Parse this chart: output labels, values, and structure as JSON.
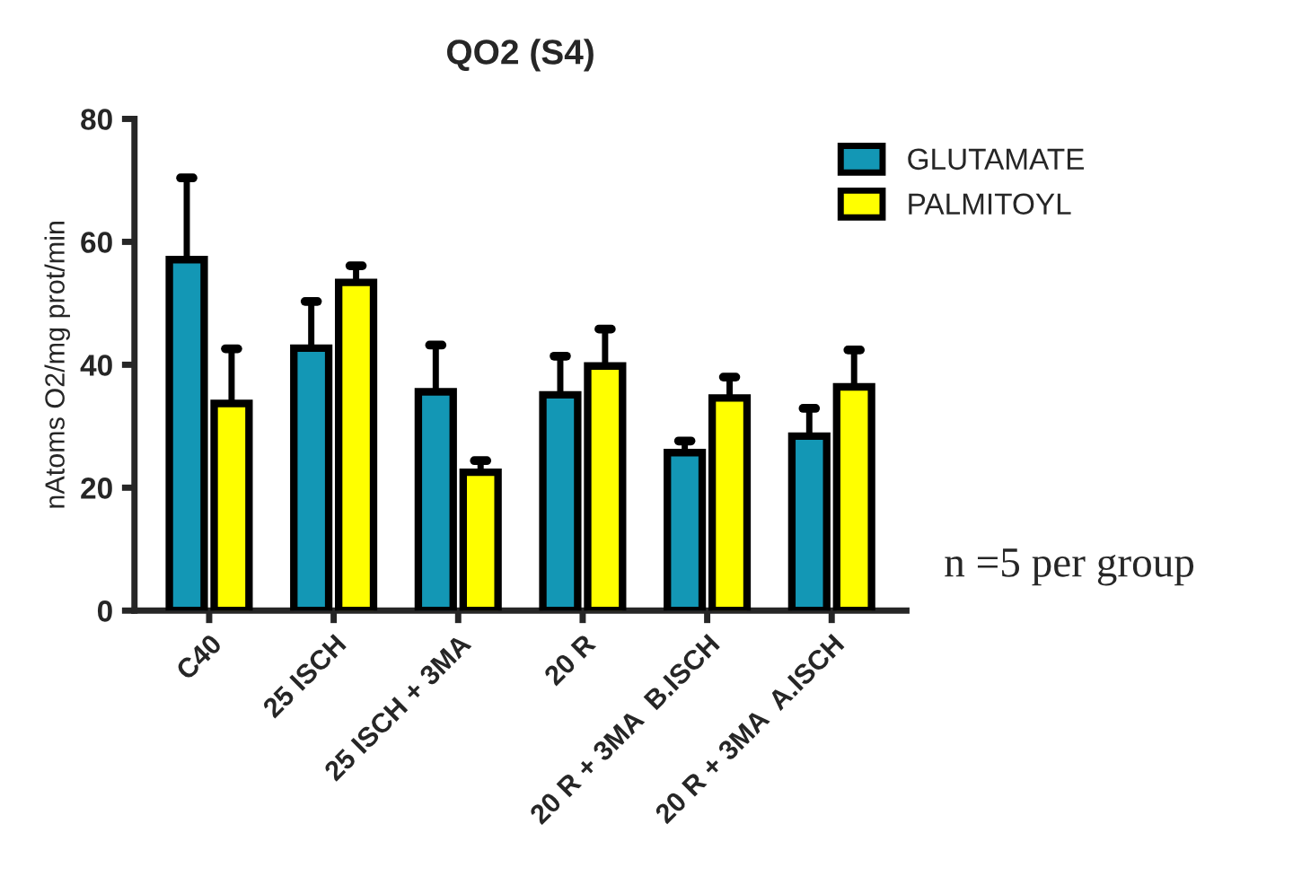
{
  "chart_data": {
    "type": "bar",
    "title": "QO2 (S4)",
    "ylabel": "nAtoms O2/mg prot/min",
    "categories": [
      "C40",
      "25 ISCH",
      "25 ISCH + 3MA",
      "20 R",
      "20 R + 3MA  B.ISCH",
      "20 R + 3MA  A.ISCH"
    ],
    "series": [
      {
        "name": "GLUTAMATE",
        "color": "#1397b5",
        "values": [
          57.1,
          42.7,
          35.6,
          35.1,
          25.7,
          28.4
        ],
        "errors": [
          [
            57.1,
            70.4
          ],
          [
            42.7,
            50.3
          ],
          [
            35.6,
            43.2
          ],
          [
            35.1,
            41.4
          ],
          [
            25.7,
            27.6
          ],
          [
            28.4,
            32.9
          ]
        ]
      },
      {
        "name": "PALMITOYL",
        "color": "#ffff00",
        "values": [
          33.7,
          53.4,
          22.5,
          39.8,
          34.6,
          36.4
        ],
        "errors": [
          [
            33.7,
            42.6
          ],
          [
            53.4,
            56.1
          ],
          [
            22.5,
            24.4
          ],
          [
            39.8,
            45.8
          ],
          [
            34.6,
            38.0
          ],
          [
            36.4,
            42.4
          ]
        ]
      }
    ],
    "ylim": [
      0,
      80
    ],
    "yticks": [
      0,
      20,
      40,
      60,
      80
    ],
    "grid": false,
    "legend": "top right",
    "annotations": [
      "n =5 per group"
    ]
  }
}
